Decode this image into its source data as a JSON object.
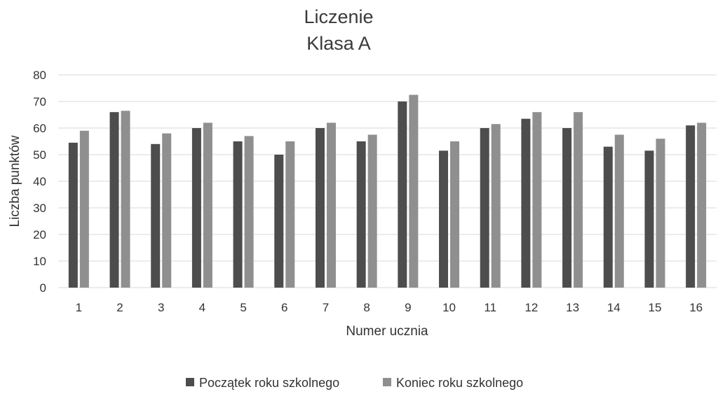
{
  "chart_data": {
    "type": "bar",
    "title": "Liczenie",
    "subtitle": "Klasa A",
    "xlabel": "Numer ucznia",
    "ylabel": "Liczba punktów",
    "ylim": [
      0,
      80
    ],
    "yticks": [
      "0",
      "10",
      "20",
      "30",
      "40",
      "50",
      "60",
      "70",
      "80"
    ],
    "grid": true,
    "legend_position": "bottom",
    "categories": [
      "1",
      "2",
      "3",
      "4",
      "5",
      "6",
      "7",
      "8",
      "9",
      "10",
      "11",
      "12",
      "13",
      "14",
      "15",
      "16"
    ],
    "series": [
      {
        "name": "Początek roku szkolnego",
        "color": "#4d4d4d",
        "values": [
          54.5,
          66,
          54,
          60,
          55,
          50,
          60,
          55,
          70,
          51.5,
          60,
          63.5,
          60,
          53,
          51.5,
          61
        ]
      },
      {
        "name": "Koniec roku szkolnego",
        "color": "#8f8f8f",
        "values": [
          59,
          66.5,
          58,
          62,
          57,
          55,
          62,
          57.5,
          72.5,
          55,
          61.5,
          66,
          66,
          57.5,
          56,
          62
        ]
      }
    ]
  }
}
